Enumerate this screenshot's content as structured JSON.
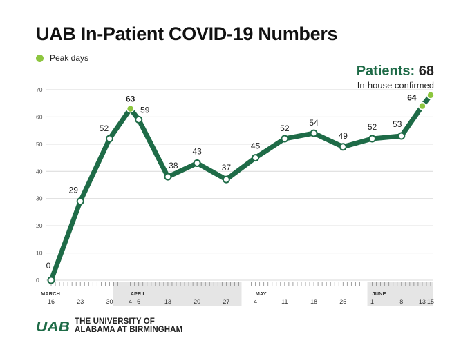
{
  "title": "UAB In-Patient COVID-19 Numbers",
  "legend": {
    "label": "Peak days",
    "color": "#8dc63f"
  },
  "callout": {
    "label": "Patients:",
    "value": "68",
    "subtitle": "In-house confirmed"
  },
  "footer": {
    "logo_text": "UAB",
    "line1": "THE UNIVERSITY OF",
    "line2": "ALABAMA AT BIRMINGHAM"
  },
  "colors": {
    "line": "#1e6b47",
    "peak": "#8dc63f",
    "band": "#e5e5e5",
    "grid": "#d9d9d9"
  },
  "chart_data": {
    "type": "line",
    "title": "UAB In-Patient COVID-19 Numbers",
    "xlabel": "",
    "ylabel": "",
    "ylim": [
      0,
      70
    ],
    "yticks": [
      0,
      10,
      20,
      30,
      40,
      50,
      60,
      70
    ],
    "grid": true,
    "legend_position": "top-left",
    "series": [
      {
        "name": "",
        "points": [
          {
            "x": "2020-03-16",
            "y": 0,
            "label": "0",
            "peak": false
          },
          {
            "x": "2020-03-23",
            "y": 29,
            "label": "29",
            "peak": false
          },
          {
            "x": "2020-03-30",
            "y": 52,
            "label": "52",
            "peak": false
          },
          {
            "x": "2020-04-04",
            "y": 63,
            "label": "63",
            "peak": true
          },
          {
            "x": "2020-04-06",
            "y": 59,
            "label": "59",
            "peak": false
          },
          {
            "x": "2020-04-13",
            "y": 38,
            "label": "38",
            "peak": false
          },
          {
            "x": "2020-04-20",
            "y": 43,
            "label": "43",
            "peak": false
          },
          {
            "x": "2020-04-27",
            "y": 37,
            "label": "37",
            "peak": false
          },
          {
            "x": "2020-05-04",
            "y": 45,
            "label": "45",
            "peak": false
          },
          {
            "x": "2020-05-11",
            "y": 52,
            "label": "52",
            "peak": false
          },
          {
            "x": "2020-05-18",
            "y": 54,
            "label": "54",
            "peak": false
          },
          {
            "x": "2020-05-25",
            "y": 49,
            "label": "49",
            "peak": false
          },
          {
            "x": "2020-06-01",
            "y": 52,
            "label": "52",
            "peak": false
          },
          {
            "x": "2020-06-08",
            "y": 53,
            "label": "53",
            "peak": false
          },
          {
            "x": "2020-06-13",
            "y": 64,
            "label": "64",
            "peak": true
          },
          {
            "x": "2020-06-15",
            "y": 68,
            "label": "",
            "peak": true
          }
        ]
      }
    ],
    "x_range": [
      "2020-03-16",
      "2020-06-15"
    ],
    "x_tick_labels": [
      {
        "x": "2020-03-16",
        "label": "16",
        "month": "MARCH"
      },
      {
        "x": "2020-03-23",
        "label": "23"
      },
      {
        "x": "2020-03-30",
        "label": "30"
      },
      {
        "x": "2020-04-04",
        "label": "4",
        "month": "APRIL"
      },
      {
        "x": "2020-04-06",
        "label": "6"
      },
      {
        "x": "2020-04-13",
        "label": "13"
      },
      {
        "x": "2020-04-20",
        "label": "20"
      },
      {
        "x": "2020-04-27",
        "label": "27"
      },
      {
        "x": "2020-05-04",
        "label": "4",
        "month": "MAY"
      },
      {
        "x": "2020-05-11",
        "label": "11"
      },
      {
        "x": "2020-05-18",
        "label": "18"
      },
      {
        "x": "2020-05-25",
        "label": "25"
      },
      {
        "x": "2020-06-01",
        "label": "1",
        "month": "JUNE"
      },
      {
        "x": "2020-06-08",
        "label": "8"
      },
      {
        "x": "2020-06-13",
        "label": "13"
      },
      {
        "x": "2020-06-15",
        "label": "15"
      }
    ],
    "month_bands": [
      {
        "name": "APRIL",
        "start": "2020-04-01",
        "end": "2020-04-30",
        "shaded": true
      },
      {
        "name": "JUNE",
        "start": "2020-06-01",
        "end": "2020-06-15",
        "shaded": true
      }
    ]
  }
}
